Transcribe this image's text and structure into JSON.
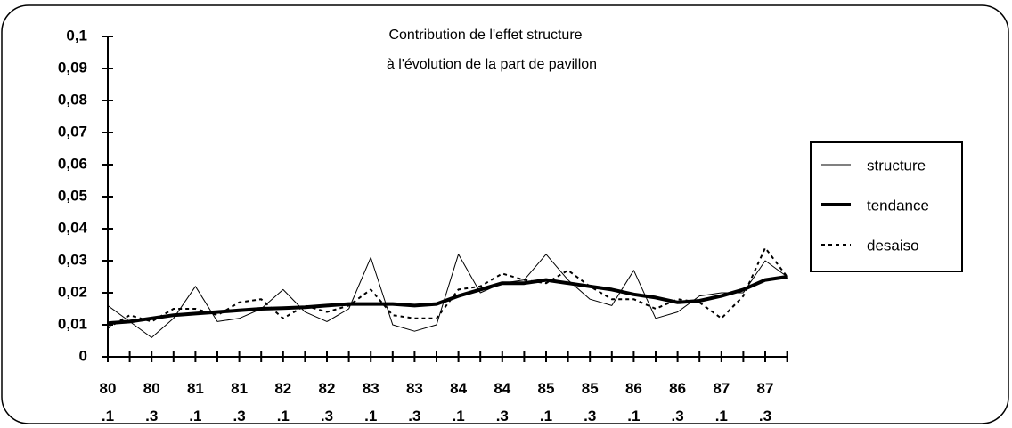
{
  "chart_data": {
    "type": "line",
    "title": [
      "Contribution de l'effet structure",
      "à l'évolution de la part de pavillon"
    ],
    "categories": [
      "80 .1",
      null,
      "80 .3",
      null,
      "81 .1",
      null,
      "81 .3",
      null,
      "82 .1",
      null,
      "82 .3",
      null,
      "83 .1",
      null,
      "83 .3",
      null,
      "84 .1",
      null,
      "84 .3",
      null,
      "85 .1",
      null,
      "85 .3",
      null,
      "86 .1",
      null,
      "86 .3",
      null,
      "87 .1",
      null,
      "87 .3",
      null
    ],
    "series": [
      {
        "name": "structure",
        "color": "#000000",
        "width": 1,
        "dash": "none",
        "values": [
          0.016,
          0.011,
          0.006,
          0.012,
          0.022,
          0.011,
          0.012,
          0.015,
          0.021,
          0.014,
          0.011,
          0.015,
          0.031,
          0.01,
          0.008,
          0.01,
          0.032,
          0.02,
          0.023,
          0.024,
          0.032,
          0.024,
          0.018,
          0.016,
          0.027,
          0.012,
          0.014,
          0.019,
          0.02,
          0.02,
          0.03,
          0.025
        ]
      },
      {
        "name": "tendance",
        "color": "#000000",
        "width": 4,
        "dash": "none",
        "values": [
          0.0105,
          0.011,
          0.012,
          0.013,
          0.0135,
          0.014,
          0.0145,
          0.015,
          0.0152,
          0.0155,
          0.016,
          0.0165,
          0.0165,
          0.0165,
          0.016,
          0.0165,
          0.019,
          0.021,
          0.023,
          0.023,
          0.024,
          0.023,
          0.022,
          0.021,
          0.0195,
          0.0185,
          0.017,
          0.0175,
          0.019,
          0.021,
          0.024,
          0.025
        ]
      },
      {
        "name": "desaiso",
        "color": "#000000",
        "width": 2,
        "dash": "4 4",
        "values": [
          0.009,
          0.013,
          0.011,
          0.015,
          0.015,
          0.013,
          0.017,
          0.018,
          0.012,
          0.016,
          0.014,
          0.016,
          0.021,
          0.013,
          0.012,
          0.012,
          0.021,
          0.022,
          0.026,
          0.024,
          0.023,
          0.027,
          0.022,
          0.018,
          0.018,
          0.015,
          0.018,
          0.017,
          0.012,
          0.019,
          0.034,
          0.025
        ]
      }
    ],
    "ylim": [
      0,
      0.1
    ],
    "yticks": [
      0,
      {
        "value": 0.01,
        "label": "0,01"
      },
      {
        "value": 0.02,
        "label": "0,02"
      },
      {
        "value": 0.03,
        "label": "0,03"
      },
      {
        "value": 0.04,
        "label": "0,04"
      },
      {
        "value": 0.05,
        "label": "0,05"
      },
      {
        "value": 0.06,
        "label": "0,06"
      },
      {
        "value": 0.07,
        "label": "0,07"
      },
      {
        "value": 0.08,
        "label": "0,08"
      },
      {
        "value": 0.09,
        "label": "0,09"
      },
      {
        "value": 0.1,
        "label": "0,1"
      }
    ],
    "grid": false,
    "legend": "right"
  }
}
